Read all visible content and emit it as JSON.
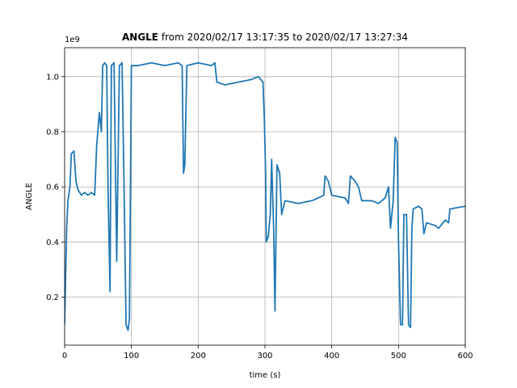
{
  "chart_data": {
    "type": "line",
    "title_bold": "ANGLE",
    "title_rest": "from 2020/02/17 13:17:35 to 2020/02/17 13:27:34",
    "x_label": "time (s)",
    "y_label": "ANGLE",
    "y_offset_label": "1e9",
    "xlim": [
      0,
      600
    ],
    "xticks": [
      0,
      100,
      200,
      300,
      400,
      500,
      600
    ],
    "ylim": [
      0.026,
      1.105
    ],
    "yticks": [
      0.2,
      0.4,
      0.6,
      0.8,
      {
        "value": 1,
        "label": "1.0"
      }
    ],
    "grid": true,
    "series": [
      {
        "name": "ANGLE",
        "color": "#1f77b4",
        "x": [
          0,
          3,
          5,
          8,
          10,
          14,
          17,
          20,
          25,
          30,
          35,
          40,
          45,
          48,
          52,
          55,
          57,
          60,
          63,
          65,
          68,
          70,
          74,
          78,
          82,
          86,
          89,
          92,
          95,
          97,
          100,
          110,
          130,
          150,
          170,
          176,
          178,
          180,
          183,
          200,
          220,
          225,
          228,
          240,
          260,
          280,
          290,
          297,
          299,
          301,
          302,
          305,
          308,
          310,
          313,
          315,
          318,
          322,
          325,
          330,
          350,
          370,
          380,
          388,
          390,
          395,
          400,
          420,
          425,
          428,
          435,
          440,
          445,
          460,
          470,
          480,
          485,
          488,
          492,
          495,
          498,
          500,
          503,
          506,
          508,
          512,
          515,
          518,
          520,
          522,
          530,
          535,
          538,
          542,
          555,
          560,
          570,
          575,
          577,
          600
        ],
        "values": [
          0.1,
          0.45,
          0.55,
          0.6,
          0.72,
          0.73,
          0.62,
          0.59,
          0.57,
          0.58,
          0.57,
          0.58,
          0.57,
          0.75,
          0.87,
          0.8,
          1.04,
          1.05,
          1.04,
          0.6,
          0.22,
          1.04,
          1.05,
          0.33,
          1.04,
          1.05,
          0.6,
          0.1,
          0.08,
          0.12,
          1.04,
          1.04,
          1.05,
          1.04,
          1.05,
          1.04,
          0.65,
          0.68,
          1.04,
          1.05,
          1.04,
          1.05,
          0.98,
          0.97,
          0.98,
          0.99,
          1.0,
          0.98,
          0.85,
          0.65,
          0.4,
          0.42,
          0.5,
          0.7,
          0.45,
          0.15,
          0.68,
          0.65,
          0.5,
          0.55,
          0.54,
          0.55,
          0.56,
          0.57,
          0.64,
          0.62,
          0.57,
          0.56,
          0.54,
          0.64,
          0.62,
          0.6,
          0.55,
          0.55,
          0.54,
          0.56,
          0.6,
          0.45,
          0.55,
          0.78,
          0.76,
          0.4,
          0.1,
          0.1,
          0.5,
          0.5,
          0.1,
          0.09,
          0.45,
          0.52,
          0.53,
          0.52,
          0.43,
          0.47,
          0.46,
          0.45,
          0.48,
          0.47,
          0.52,
          0.53
        ]
      }
    ]
  }
}
